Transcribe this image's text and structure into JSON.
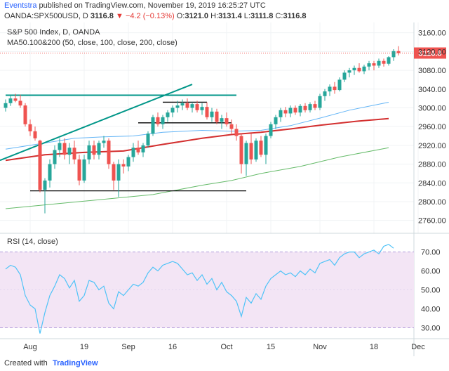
{
  "header": {
    "author": "Eventstra",
    "published": "published on TradingView.com, November 19, 2019 16:25:27 UTC",
    "symbol": "OANDA:SPX500USD, D",
    "last": "3116.8",
    "change": "▼ −4.2 (−0.13%)",
    "o_label": "O:",
    "o": "3121.0",
    "h_label": "H:",
    "h": "3131.4",
    "l_label": "L:",
    "l": "3111.8",
    "c_label": "C:",
    "c": "3116.8"
  },
  "legend": {
    "title": "S&P 500 Index, D, OANDA",
    "ma": "MA50.100&200 (50, close, 100, close, 200, close)",
    "rsi": "RSI (14, close)"
  },
  "footer": {
    "created": "Created with",
    "brand": "TradingView"
  },
  "colors": {
    "up": "#26a69a",
    "down": "#ef5350",
    "ma50": "#64b5f6",
    "ma100": "#d32f2f",
    "ma200": "#66bb6a",
    "rsi_line": "#4fc3f7",
    "rsi_band": "#f3e5f5",
    "trend": "#009688"
  },
  "chart_data": {
    "type": "candlestick",
    "price_axis": {
      "ticks": [
        3160,
        3120,
        3080,
        3040,
        3000,
        2960,
        2920,
        2880,
        2840,
        2800,
        2760
      ],
      "range": [
        2740,
        3170
      ],
      "last_price_label": "3116.8"
    },
    "rsi_axis": {
      "ticks": [
        70,
        60,
        50,
        40,
        30
      ],
      "range": [
        25,
        78
      ],
      "band": [
        30,
        70
      ]
    },
    "x_ticks": [
      "Aug",
      "19",
      "Sep",
      "16",
      "Oct",
      "15",
      "Nov",
      "18",
      "Dec"
    ],
    "candles": [
      {
        "o": 3000,
        "h": 3018,
        "l": 2992,
        "c": 3010
      },
      {
        "o": 3010,
        "h": 3025,
        "l": 3004,
        "c": 3020
      },
      {
        "o": 3020,
        "h": 3030,
        "l": 3012,
        "c": 3015
      },
      {
        "o": 3015,
        "h": 3028,
        "l": 3000,
        "c": 3005
      },
      {
        "o": 3005,
        "h": 3010,
        "l": 2960,
        "c": 2965
      },
      {
        "o": 2965,
        "h": 2975,
        "l": 2940,
        "c": 2950
      },
      {
        "o": 2950,
        "h": 2960,
        "l": 2930,
        "c": 2935
      },
      {
        "o": 2930,
        "h": 2932,
        "l": 2820,
        "c": 2825
      },
      {
        "o": 2825,
        "h": 2850,
        "l": 2775,
        "c": 2845
      },
      {
        "o": 2845,
        "h": 2890,
        "l": 2830,
        "c": 2880
      },
      {
        "o": 2880,
        "h": 2920,
        "l": 2870,
        "c": 2910
      },
      {
        "o": 2910,
        "h": 2935,
        "l": 2895,
        "c": 2925
      },
      {
        "o": 2925,
        "h": 2935,
        "l": 2890,
        "c": 2900
      },
      {
        "o": 2900,
        "h": 2925,
        "l": 2880,
        "c": 2915
      },
      {
        "o": 2915,
        "h": 2930,
        "l": 2880,
        "c": 2890
      },
      {
        "o": 2890,
        "h": 2900,
        "l": 2835,
        "c": 2845
      },
      {
        "o": 2845,
        "h": 2900,
        "l": 2840,
        "c": 2890
      },
      {
        "o": 2890,
        "h": 2930,
        "l": 2880,
        "c": 2920
      },
      {
        "o": 2920,
        "h": 2930,
        "l": 2890,
        "c": 2900
      },
      {
        "o": 2900,
        "h": 2930,
        "l": 2890,
        "c": 2925
      },
      {
        "o": 2925,
        "h": 2940,
        "l": 2915,
        "c": 2930
      },
      {
        "o": 2930,
        "h": 2935,
        "l": 2870,
        "c": 2880
      },
      {
        "o": 2880,
        "h": 2885,
        "l": 2825,
        "c": 2845
      },
      {
        "o": 2845,
        "h": 2890,
        "l": 2810,
        "c": 2880
      },
      {
        "o": 2880,
        "h": 2890,
        "l": 2860,
        "c": 2875
      },
      {
        "o": 2875,
        "h": 2900,
        "l": 2865,
        "c": 2895
      },
      {
        "o": 2895,
        "h": 2925,
        "l": 2885,
        "c": 2915
      },
      {
        "o": 2915,
        "h": 2930,
        "l": 2900,
        "c": 2905
      },
      {
        "o": 2905,
        "h": 2925,
        "l": 2895,
        "c": 2920
      },
      {
        "o": 2920,
        "h": 2950,
        "l": 2915,
        "c": 2945
      },
      {
        "o": 2945,
        "h": 2985,
        "l": 2940,
        "c": 2980
      },
      {
        "o": 2980,
        "h": 2990,
        "l": 2960,
        "c": 2965
      },
      {
        "o": 2965,
        "h": 2985,
        "l": 2955,
        "c": 2980
      },
      {
        "o": 2980,
        "h": 2995,
        "l": 2970,
        "c": 2990
      },
      {
        "o": 2990,
        "h": 3005,
        "l": 2980,
        "c": 3000
      },
      {
        "o": 3000,
        "h": 3015,
        "l": 2990,
        "c": 3005
      },
      {
        "o": 3005,
        "h": 3018,
        "l": 2995,
        "c": 3010
      },
      {
        "o": 3010,
        "h": 3020,
        "l": 2995,
        "c": 3000
      },
      {
        "o": 3000,
        "h": 3012,
        "l": 2990,
        "c": 3008
      },
      {
        "o": 3008,
        "h": 3015,
        "l": 2990,
        "c": 2995
      },
      {
        "o": 2995,
        "h": 3010,
        "l": 2985,
        "c": 3002
      },
      {
        "o": 3002,
        "h": 3012,
        "l": 2975,
        "c": 2980
      },
      {
        "o": 2980,
        "h": 3000,
        "l": 2970,
        "c": 2992
      },
      {
        "o": 2992,
        "h": 2998,
        "l": 2965,
        "c": 2970
      },
      {
        "o": 2970,
        "h": 2985,
        "l": 2955,
        "c": 2978
      },
      {
        "o": 2978,
        "h": 2990,
        "l": 2960,
        "c": 2965
      },
      {
        "o": 2965,
        "h": 2975,
        "l": 2945,
        "c": 2955
      },
      {
        "o": 2955,
        "h": 2965,
        "l": 2930,
        "c": 2940
      },
      {
        "o": 2940,
        "h": 2945,
        "l": 2860,
        "c": 2880
      },
      {
        "o": 2880,
        "h": 2930,
        "l": 2855,
        "c": 2925
      },
      {
        "o": 2925,
        "h": 2945,
        "l": 2880,
        "c": 2890
      },
      {
        "o": 2890,
        "h": 2935,
        "l": 2885,
        "c": 2930
      },
      {
        "o": 2930,
        "h": 2940,
        "l": 2895,
        "c": 2900
      },
      {
        "o": 2900,
        "h": 2945,
        "l": 2880,
        "c": 2940
      },
      {
        "o": 2940,
        "h": 2970,
        "l": 2935,
        "c": 2965
      },
      {
        "o": 2965,
        "h": 2985,
        "l": 2955,
        "c": 2980
      },
      {
        "o": 2980,
        "h": 3000,
        "l": 2970,
        "c": 2995
      },
      {
        "o": 2995,
        "h": 3002,
        "l": 2980,
        "c": 2988
      },
      {
        "o": 2988,
        "h": 3005,
        "l": 2980,
        "c": 3000
      },
      {
        "o": 3000,
        "h": 3005,
        "l": 2985,
        "c": 2990
      },
      {
        "o": 2990,
        "h": 3008,
        "l": 2982,
        "c": 3004
      },
      {
        "o": 3004,
        "h": 3010,
        "l": 2990,
        "c": 2995
      },
      {
        "o": 2995,
        "h": 3012,
        "l": 2990,
        "c": 3008
      },
      {
        "o": 3008,
        "h": 3015,
        "l": 2995,
        "c": 3000
      },
      {
        "o": 3000,
        "h": 3030,
        "l": 2995,
        "c": 3025
      },
      {
        "o": 3025,
        "h": 3040,
        "l": 3015,
        "c": 3035
      },
      {
        "o": 3035,
        "h": 3050,
        "l": 3025,
        "c": 3045
      },
      {
        "o": 3045,
        "h": 3055,
        "l": 3030,
        "c": 3038
      },
      {
        "o": 3038,
        "h": 3065,
        "l": 3035,
        "c": 3060
      },
      {
        "o": 3060,
        "h": 3080,
        "l": 3055,
        "c": 3075
      },
      {
        "o": 3075,
        "h": 3085,
        "l": 3065,
        "c": 3080
      },
      {
        "o": 3080,
        "h": 3090,
        "l": 3070,
        "c": 3085
      },
      {
        "o": 3085,
        "h": 3095,
        "l": 3075,
        "c": 3078
      },
      {
        "o": 3078,
        "h": 3092,
        "l": 3072,
        "c": 3088
      },
      {
        "o": 3088,
        "h": 3100,
        "l": 3080,
        "c": 3095
      },
      {
        "o": 3095,
        "h": 3100,
        "l": 3080,
        "c": 3090
      },
      {
        "o": 3090,
        "h": 3105,
        "l": 3085,
        "c": 3100
      },
      {
        "o": 3100,
        "h": 3105,
        "l": 3088,
        "c": 3094
      },
      {
        "o": 3094,
        "h": 3110,
        "l": 3090,
        "c": 3108
      },
      {
        "o": 3108,
        "h": 3125,
        "l": 3100,
        "c": 3121
      },
      {
        "o": 3121,
        "h": 3131.4,
        "l": 3111.8,
        "c": 3116.8
      }
    ],
    "ma50": [
      [
        0,
        2912
      ],
      [
        8,
        2925
      ],
      [
        14,
        2935
      ],
      [
        20,
        2938
      ],
      [
        26,
        2940
      ],
      [
        32,
        2948
      ],
      [
        40,
        2952
      ],
      [
        46,
        2950
      ],
      [
        52,
        2952
      ],
      [
        58,
        2962
      ],
      [
        64,
        2978
      ],
      [
        70,
        2995
      ],
      [
        78,
        3012
      ]
    ],
    "ma100": [
      [
        0,
        2888
      ],
      [
        8,
        2900
      ],
      [
        16,
        2905
      ],
      [
        24,
        2908
      ],
      [
        32,
        2922
      ],
      [
        40,
        2935
      ],
      [
        46,
        2943
      ],
      [
        52,
        2948
      ],
      [
        58,
        2955
      ],
      [
        64,
        2963
      ],
      [
        72,
        2972
      ],
      [
        78,
        2977
      ]
    ],
    "ma200": [
      [
        0,
        2785
      ],
      [
        10,
        2795
      ],
      [
        20,
        2805
      ],
      [
        30,
        2815
      ],
      [
        40,
        2835
      ],
      [
        46,
        2845
      ],
      [
        52,
        2860
      ],
      [
        60,
        2875
      ],
      [
        68,
        2895
      ],
      [
        78,
        2915
      ]
    ],
    "rsi": [
      [
        0,
        61
      ],
      [
        1,
        63
      ],
      [
        2,
        62
      ],
      [
        3,
        58
      ],
      [
        4,
        47
      ],
      [
        5,
        42
      ],
      [
        6,
        40
      ],
      [
        7,
        27
      ],
      [
        8,
        38
      ],
      [
        9,
        47
      ],
      [
        10,
        52
      ],
      [
        11,
        58
      ],
      [
        12,
        56
      ],
      [
        13,
        51
      ],
      [
        14,
        55
      ],
      [
        15,
        44
      ],
      [
        16,
        47
      ],
      [
        17,
        55
      ],
      [
        18,
        54
      ],
      [
        19,
        50
      ],
      [
        20,
        52
      ],
      [
        21,
        43
      ],
      [
        22,
        40
      ],
      [
        23,
        49
      ],
      [
        24,
        47
      ],
      [
        25,
        50
      ],
      [
        26,
        53
      ],
      [
        27,
        52
      ],
      [
        28,
        54
      ],
      [
        29,
        59
      ],
      [
        30,
        62
      ],
      [
        31,
        60
      ],
      [
        32,
        63
      ],
      [
        33,
        64
      ],
      [
        34,
        65
      ],
      [
        35,
        64
      ],
      [
        36,
        61
      ],
      [
        37,
        58
      ],
      [
        38,
        59
      ],
      [
        39,
        55
      ],
      [
        40,
        58
      ],
      [
        41,
        53
      ],
      [
        42,
        56
      ],
      [
        43,
        50
      ],
      [
        44,
        54
      ],
      [
        45,
        49
      ],
      [
        46,
        47
      ],
      [
        47,
        44
      ],
      [
        48,
        36
      ],
      [
        49,
        46
      ],
      [
        50,
        43
      ],
      [
        51,
        48
      ],
      [
        52,
        45
      ],
      [
        53,
        52
      ],
      [
        54,
        56
      ],
      [
        55,
        58
      ],
      [
        56,
        60
      ],
      [
        57,
        58
      ],
      [
        58,
        59
      ],
      [
        59,
        57
      ],
      [
        60,
        60
      ],
      [
        61,
        58
      ],
      [
        62,
        61
      ],
      [
        63,
        59
      ],
      [
        64,
        64
      ],
      [
        65,
        65
      ],
      [
        66,
        66
      ],
      [
        67,
        63
      ],
      [
        68,
        67
      ],
      [
        69,
        69
      ],
      [
        70,
        70
      ],
      [
        71,
        70
      ],
      [
        72,
        67
      ],
      [
        73,
        69
      ],
      [
        74,
        70
      ],
      [
        75,
        71
      ],
      [
        76,
        69
      ],
      [
        77,
        73
      ],
      [
        78,
        74
      ],
      [
        79,
        72
      ]
    ],
    "drawings": {
      "horizontal_levels": [
        {
          "price": 3027,
          "from": 0,
          "to": 47,
          "color": "trend"
        },
        {
          "price": 3012,
          "from": 32,
          "to": 41,
          "color": "#000"
        },
        {
          "price": 2968,
          "from": 27,
          "to": 46,
          "color": "#000"
        },
        {
          "price": 2823,
          "from": 5,
          "to": 49,
          "color": "#000"
        }
      ],
      "trendlines": [
        {
          "x1": 0,
          "p1": 2888,
          "x2": 38,
          "p2": 3050,
          "color": "trend"
        }
      ]
    }
  }
}
